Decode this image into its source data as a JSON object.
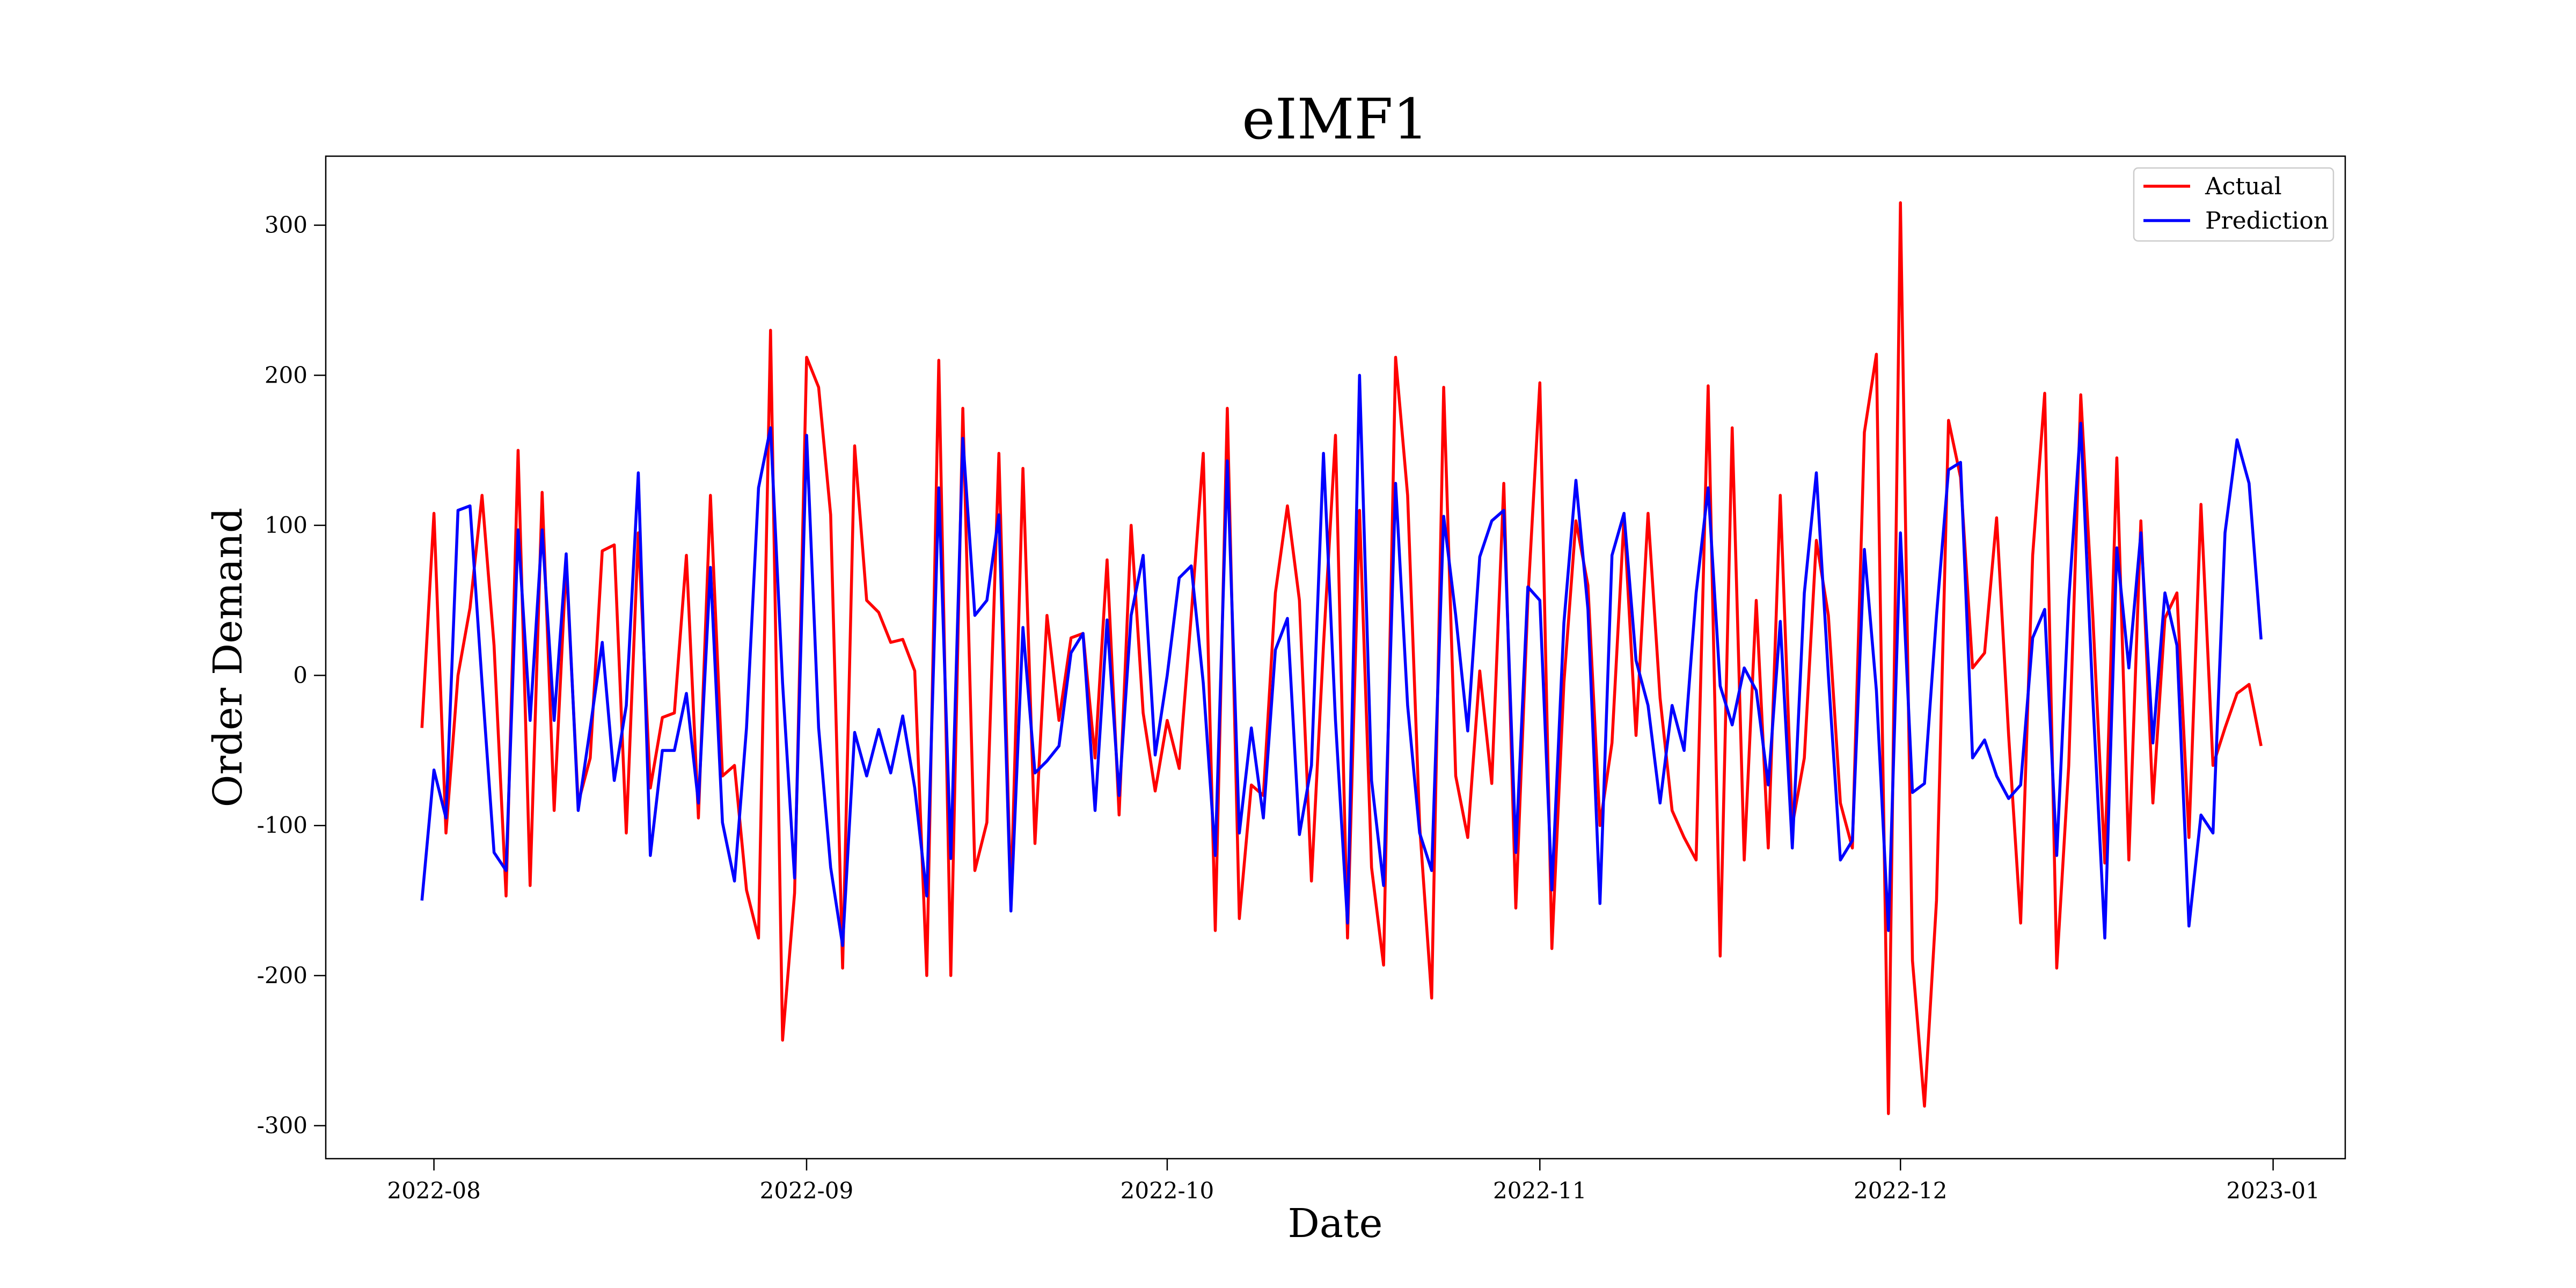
{
  "chart_data": {
    "type": "line",
    "title": "eIMF1",
    "xlabel": "Date",
    "ylabel": "Order Demand",
    "x": [
      "2022-07-31",
      "2022-08-01",
      "2022-08-02",
      "2022-08-03",
      "2022-08-04",
      "2022-08-05",
      "2022-08-06",
      "2022-08-07",
      "2022-08-08",
      "2022-08-09",
      "2022-08-10",
      "2022-08-11",
      "2022-08-12",
      "2022-08-13",
      "2022-08-14",
      "2022-08-15",
      "2022-08-16",
      "2022-08-17",
      "2022-08-18",
      "2022-08-19",
      "2022-08-20",
      "2022-08-21",
      "2022-08-22",
      "2022-08-23",
      "2022-08-24",
      "2022-08-25",
      "2022-08-26",
      "2022-08-27",
      "2022-08-28",
      "2022-08-29",
      "2022-08-30",
      "2022-08-31",
      "2022-09-01",
      "2022-09-02",
      "2022-09-03",
      "2022-09-04",
      "2022-09-05",
      "2022-09-06",
      "2022-09-07",
      "2022-09-08",
      "2022-09-09",
      "2022-09-10",
      "2022-09-11",
      "2022-09-12",
      "2022-09-13",
      "2022-09-14",
      "2022-09-15",
      "2022-09-16",
      "2022-09-17",
      "2022-09-18",
      "2022-09-19",
      "2022-09-20",
      "2022-09-21",
      "2022-09-22",
      "2022-09-23",
      "2022-09-24",
      "2022-09-25",
      "2022-09-26",
      "2022-09-27",
      "2022-09-28",
      "2022-09-29",
      "2022-09-30",
      "2022-10-01",
      "2022-10-02",
      "2022-10-03",
      "2022-10-04",
      "2022-10-05",
      "2022-10-06",
      "2022-10-07",
      "2022-10-08",
      "2022-10-09",
      "2022-10-10",
      "2022-10-11",
      "2022-10-12",
      "2022-10-13",
      "2022-10-14",
      "2022-10-15",
      "2022-10-16",
      "2022-10-17",
      "2022-10-18",
      "2022-10-19",
      "2022-10-20",
      "2022-10-21",
      "2022-10-22",
      "2022-10-23",
      "2022-10-24",
      "2022-10-25",
      "2022-10-26",
      "2022-10-27",
      "2022-10-28",
      "2022-10-29",
      "2022-10-30",
      "2022-10-31",
      "2022-11-01",
      "2022-11-02",
      "2022-11-03",
      "2022-11-04",
      "2022-11-05",
      "2022-11-06",
      "2022-11-07",
      "2022-11-08",
      "2022-11-09",
      "2022-11-10",
      "2022-11-11",
      "2022-11-12",
      "2022-11-13",
      "2022-11-14",
      "2022-11-15",
      "2022-11-16",
      "2022-11-17",
      "2022-11-18",
      "2022-11-19",
      "2022-11-20",
      "2022-11-21",
      "2022-11-22",
      "2022-11-23",
      "2022-11-24",
      "2022-11-25",
      "2022-11-26",
      "2022-11-27",
      "2022-11-28",
      "2022-11-29",
      "2022-11-30",
      "2022-12-01",
      "2022-12-02",
      "2022-12-03",
      "2022-12-04",
      "2022-12-05",
      "2022-12-06",
      "2022-12-07",
      "2022-12-08",
      "2022-12-09",
      "2022-12-10",
      "2022-12-11",
      "2022-12-12",
      "2022-12-13",
      "2022-12-14",
      "2022-12-15",
      "2022-12-16",
      "2022-12-17",
      "2022-12-18",
      "2022-12-19",
      "2022-12-20",
      "2022-12-21",
      "2022-12-22",
      "2022-12-23",
      "2022-12-24",
      "2022-12-25",
      "2022-12-26",
      "2022-12-27",
      "2022-12-28",
      "2022-12-29",
      "2022-12-30",
      "2022-12-31"
    ],
    "series": [
      {
        "name": "Actual",
        "color": "#ff0000",
        "values": [
          -35,
          108,
          -105,
          0,
          45,
          120,
          20,
          -147,
          150,
          -140,
          122,
          -90,
          75,
          -85,
          -55,
          83,
          87,
          -105,
          95,
          -75,
          -28,
          -25,
          80,
          -95,
          120,
          -67,
          -60,
          -143,
          -175,
          230,
          -243,
          -145,
          212,
          192,
          107,
          -195,
          153,
          50,
          42,
          22,
          24,
          3,
          -200,
          210,
          -200,
          178,
          -130,
          -98,
          148,
          -150,
          138,
          -112,
          40,
          -30,
          25,
          28,
          -55,
          77,
          -93,
          100,
          -25,
          -77,
          -30,
          -62,
          40,
          148,
          -170,
          178,
          -162,
          -73,
          -80,
          55,
          113,
          50,
          -137,
          20,
          160,
          -175,
          110,
          -128,
          -193,
          212,
          120,
          -100,
          -215,
          192,
          -67,
          -108,
          3,
          -72,
          128,
          -155,
          50,
          195,
          -182,
          -5,
          103,
          60,
          -100,
          -45,
          105,
          -40,
          108,
          -15,
          -90,
          -108,
          -123,
          193,
          -187,
          165,
          -123,
          50,
          -115,
          120,
          -100,
          -55,
          90,
          40,
          -85,
          -115,
          162,
          214,
          -292,
          315,
          -190,
          -287,
          -150,
          170,
          132,
          5,
          15,
          105,
          -40,
          -165,
          80,
          188,
          -195,
          -60,
          187,
          40,
          -125,
          145,
          -123,
          103,
          -85,
          38,
          55,
          -108,
          114,
          -60,
          -35,
          -12,
          -6,
          -47
        ]
      },
      {
        "name": "Prediction",
        "color": "#0000ff",
        "values": [
          -150,
          -63,
          -95,
          110,
          113,
          -5,
          -118,
          -130,
          97,
          -30,
          97,
          -30,
          81,
          -90,
          -35,
          22,
          -70,
          -20,
          135,
          -120,
          -50,
          -50,
          -12,
          -85,
          72,
          -98,
          -137,
          -35,
          125,
          165,
          -5,
          -135,
          160,
          -35,
          -128,
          -180,
          -38,
          -67,
          -36,
          -65,
          -27,
          -75,
          -147,
          125,
          -122,
          158,
          40,
          50,
          107,
          -157,
          32,
          -65,
          -57,
          -47,
          15,
          28,
          -90,
          37,
          -80,
          40,
          80,
          -53,
          0,
          65,
          73,
          -5,
          -120,
          143,
          -105,
          -35,
          -95,
          17,
          38,
          -106,
          -60,
          148,
          -30,
          -165,
          200,
          -70,
          -140,
          128,
          -20,
          -105,
          -130,
          106,
          40,
          -37,
          79,
          103,
          110,
          -118,
          59,
          50,
          -143,
          35,
          130,
          44,
          -152,
          80,
          108,
          10,
          -20,
          -85,
          -20,
          -50,
          55,
          125,
          -7,
          -33,
          5,
          -10,
          -73,
          36,
          -115,
          55,
          135,
          0,
          -123,
          -110,
          84,
          -10,
          -170,
          95,
          -78,
          -72,
          40,
          137,
          142,
          -55,
          -43,
          -67,
          -82,
          -73,
          25,
          44,
          -120,
          50,
          168,
          -15,
          -175,
          85,
          5,
          95,
          -45,
          55,
          20,
          -167,
          -93,
          -105,
          95,
          157,
          128,
          24
        ]
      }
    ],
    "xlim": [
      "2022-07-23",
      "2023-01-07"
    ],
    "xticks": [
      {
        "value": "2022-08-01",
        "label": "2022-08"
      },
      {
        "value": "2022-09-01",
        "label": "2022-09"
      },
      {
        "value": "2022-10-01",
        "label": "2022-10"
      },
      {
        "value": "2022-11-01",
        "label": "2022-11"
      },
      {
        "value": "2022-12-01",
        "label": "2022-12"
      },
      {
        "value": "2023-01-01",
        "label": "2023-01"
      }
    ],
    "ylim": [
      -322,
      346
    ],
    "yticks": [
      -300,
      -200,
      -100,
      0,
      100,
      200,
      300
    ],
    "legend": "upper right",
    "grid": false
  }
}
